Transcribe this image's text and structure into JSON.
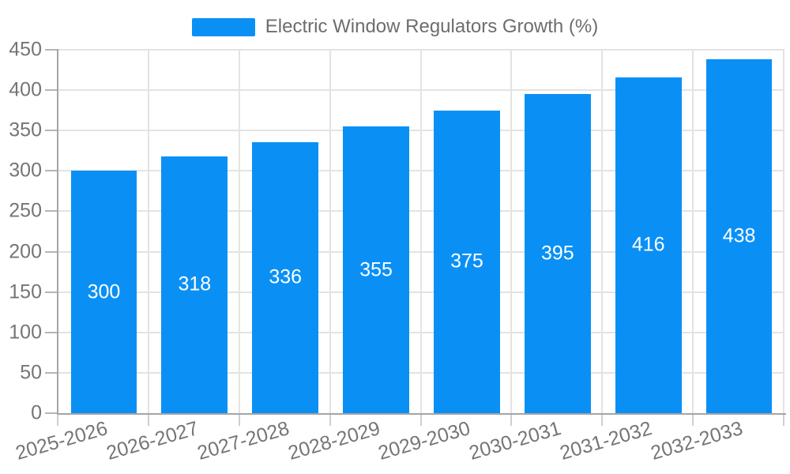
{
  "chart_data": {
    "type": "bar",
    "title": "Electric Window Regulators Growth (%)",
    "categories": [
      "2025-2026",
      "2026-2027",
      "2027-2028",
      "2028-2029",
      "2029-2030",
      "2030-2031",
      "2031-2032",
      "2032-2033"
    ],
    "values": [
      300,
      318,
      336,
      355,
      375,
      395,
      416,
      438
    ],
    "bar_value_labels": [
      "300",
      "318",
      "336",
      "355",
      "375",
      "395",
      "416",
      "438"
    ],
    "xlabel": "",
    "ylabel": "",
    "ylim": [
      0,
      450
    ],
    "yticks": [
      0,
      50,
      100,
      150,
      200,
      250,
      300,
      350,
      400,
      450
    ],
    "grid": true,
    "legend_position": "top",
    "x_label_rotation_deg": -16,
    "colors": {
      "bar": "#0a90f5",
      "bar_label_text": "#ffffff",
      "axis_text": "#757575",
      "legend_text": "#6d6d6d",
      "grid_line": "#e3e3e3",
      "axis_line": "#a5a5a5",
      "background": "#ffffff"
    }
  }
}
